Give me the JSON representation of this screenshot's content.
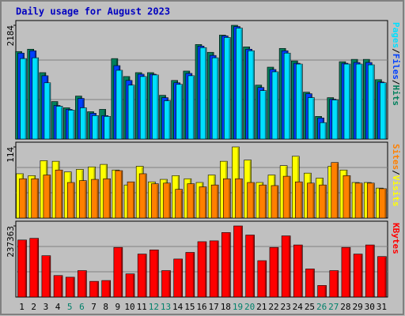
{
  "chart_data": [
    {
      "type": "bar",
      "title": "Daily usage for August 2023",
      "ylim": [
        0,
        2184
      ],
      "yticks": [
        2184
      ],
      "legend_separator": "/",
      "series": [
        {
          "name": "Hits",
          "color": "#00805c",
          "values": [
            1680,
            1725,
            1275,
            720,
            600,
            825,
            525,
            570,
            1545,
            1200,
            1275,
            1275,
            840,
            1125,
            1305,
            1815,
            1665,
            1995,
            2184,
            1770,
            1035,
            1380,
            1740,
            1500,
            900,
            435,
            795,
            1485,
            1530,
            1530,
            1140
          ]
        },
        {
          "name": "Files",
          "color": "#0040ff",
          "values": [
            1650,
            1695,
            1215,
            645,
            570,
            780,
            495,
            450,
            1410,
            1125,
            1245,
            1245,
            795,
            1080,
            1260,
            1785,
            1605,
            1980,
            2160,
            1725,
            990,
            1335,
            1695,
            1455,
            870,
            405,
            765,
            1455,
            1470,
            1470,
            1095
          ]
        },
        {
          "name": "Pages",
          "color": "#00e0ff",
          "values": [
            1545,
            1560,
            1080,
            630,
            555,
            600,
            450,
            435,
            1320,
            1035,
            1200,
            1230,
            735,
            1050,
            1215,
            1755,
            1560,
            1950,
            2130,
            1695,
            930,
            1290,
            1650,
            1440,
            795,
            315,
            750,
            1440,
            1440,
            1425,
            1080
          ]
        }
      ]
    },
    {
      "type": "bar",
      "ylim": [
        0,
        114
      ],
      "yticks": [
        114
      ],
      "legend_separator": "/",
      "series": [
        {
          "name": "Visits",
          "color": "#ffff00",
          "values": [
            71,
            68,
            92,
            91,
            74,
            78,
            82,
            86,
            77,
            53,
            83,
            58,
            62,
            68,
            63,
            57,
            69,
            91,
            114,
            93,
            57,
            69,
            84,
            99,
            72,
            64,
            83,
            77,
            57,
            57,
            48
          ]
        },
        {
          "name": "Sites",
          "color": "#ff8000",
          "values": [
            63,
            63,
            69,
            77,
            57,
            60,
            62,
            63,
            76,
            58,
            71,
            55,
            56,
            46,
            55,
            50,
            53,
            63,
            63,
            57,
            53,
            52,
            67,
            58,
            56,
            53,
            89,
            68,
            56,
            56,
            47
          ]
        }
      ]
    },
    {
      "type": "bar",
      "ylim": [
        0,
        237363
      ],
      "yticks": [
        237363
      ],
      "categories": [
        "1",
        "2",
        "3",
        "4",
        "5",
        "6",
        "7",
        "8",
        "9",
        "10",
        "11",
        "12",
        "13",
        "14",
        "15",
        "16",
        "17",
        "18",
        "19",
        "20",
        "21",
        "22",
        "23",
        "24",
        "25",
        "26",
        "27",
        "28",
        "29",
        "30",
        "31"
      ],
      "highlight_categories": [
        "5",
        "6",
        "12",
        "13",
        "19",
        "20",
        "26",
        "27"
      ],
      "highlight_color": "#00806a",
      "series": [
        {
          "name": "KBytes",
          "color": "#ff0000",
          "values": [
            190400,
            196000,
            138000,
            71800,
            66200,
            88300,
            52400,
            55200,
            165600,
            77300,
            143500,
            157300,
            88300,
            126900,
            149000,
            184800,
            187600,
            215300,
            237363,
            207000,
            121400,
            165600,
            204200,
            173900,
            93800,
            38600,
            88300,
            165600,
            143500,
            173900,
            135200
          ]
        }
      ]
    }
  ]
}
